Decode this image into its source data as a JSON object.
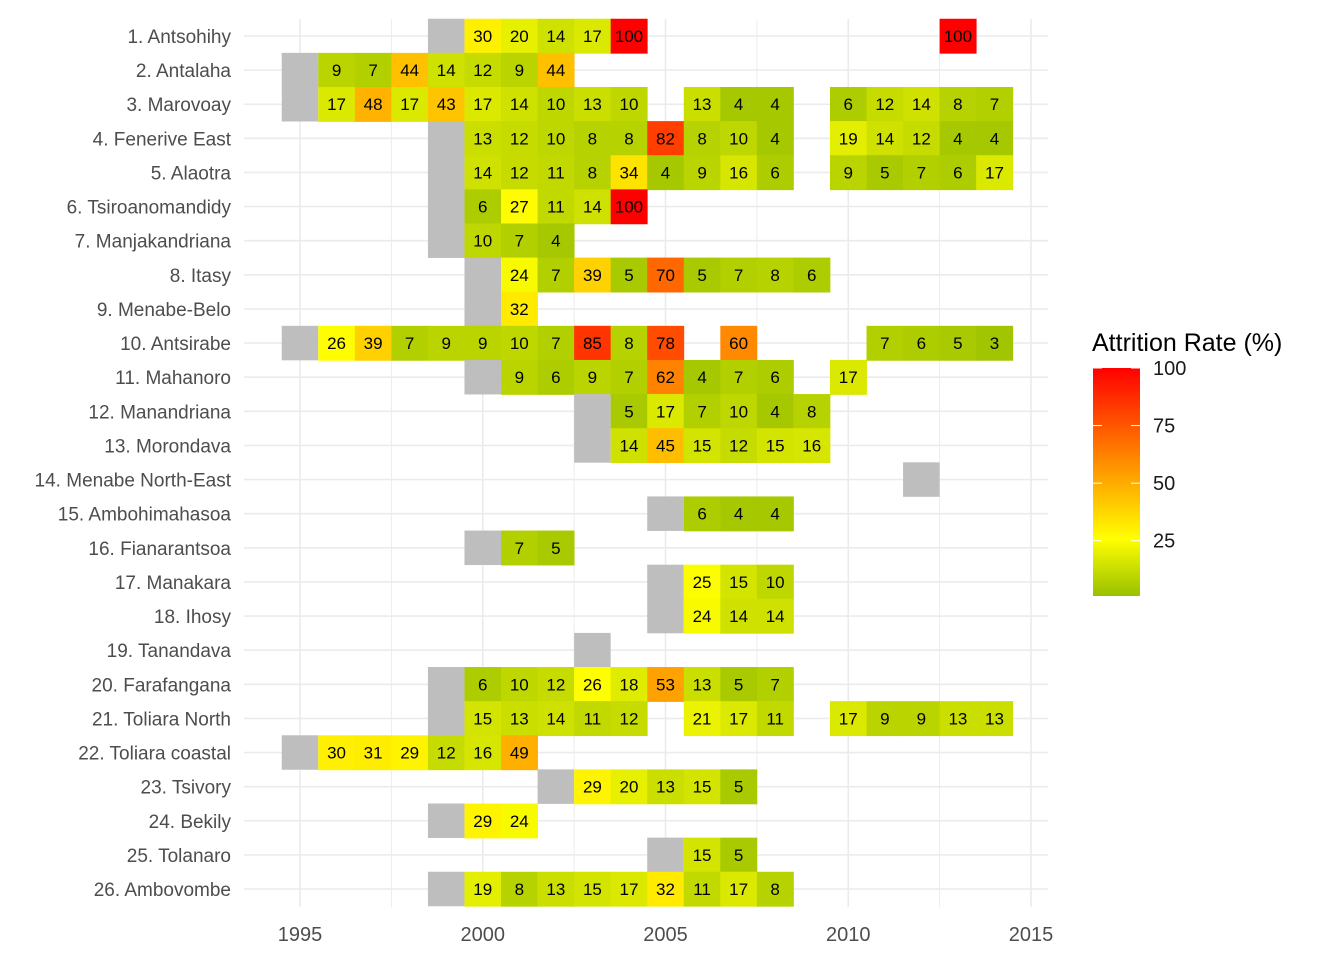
{
  "chart_data": {
    "type": "heatmap",
    "title": "",
    "xlabel": "",
    "ylabel": "",
    "legend": {
      "title": "Attrition Rate (%)",
      "ticks": [
        25,
        50,
        75,
        100
      ],
      "placement": "right",
      "range": [
        1,
        100
      ]
    },
    "x_ticks": [
      1995,
      2000,
      2005,
      2010,
      2015
    ],
    "xlim": [
      1993.7,
      2015.6
    ],
    "grid": true,
    "colors": {
      "low": "#99c000",
      "mid": "#ffff00",
      "high": "#ff0000",
      "missing": "#bebebe",
      "grid": "#ebebeb"
    },
    "rows": [
      {
        "label": "1. Antsohihy",
        "missing": [
          1999
        ],
        "cells": [
          [
            2000,
            30
          ],
          [
            2001,
            20
          ],
          [
            2002,
            14
          ],
          [
            2003,
            17
          ],
          [
            2004,
            100
          ],
          [
            2013,
            100
          ]
        ]
      },
      {
        "label": "2. Antalaha",
        "missing": [
          1995
        ],
        "cells": [
          [
            1996,
            9
          ],
          [
            1997,
            7
          ],
          [
            1998,
            44
          ],
          [
            1999,
            14
          ],
          [
            2000,
            12
          ],
          [
            2001,
            9
          ],
          [
            2002,
            44
          ]
        ]
      },
      {
        "label": "3. Marovoay",
        "missing": [
          1995
        ],
        "cells": [
          [
            1996,
            17
          ],
          [
            1997,
            48
          ],
          [
            1998,
            17
          ],
          [
            1999,
            43
          ],
          [
            2000,
            17
          ],
          [
            2001,
            14
          ],
          [
            2002,
            10
          ],
          [
            2003,
            13
          ],
          [
            2004,
            10
          ],
          [
            2006,
            13
          ],
          [
            2007,
            4
          ],
          [
            2008,
            4
          ],
          [
            2010,
            6
          ],
          [
            2011,
            12
          ],
          [
            2012,
            14
          ],
          [
            2013,
            8
          ],
          [
            2014,
            7
          ]
        ]
      },
      {
        "label": "4. Fenerive East",
        "missing": [
          1999
        ],
        "cells": [
          [
            2000,
            13
          ],
          [
            2001,
            12
          ],
          [
            2002,
            10
          ],
          [
            2003,
            8
          ],
          [
            2004,
            8
          ],
          [
            2005,
            82
          ],
          [
            2006,
            8
          ],
          [
            2007,
            10
          ],
          [
            2008,
            4
          ],
          [
            2010,
            19
          ],
          [
            2011,
            14
          ],
          [
            2012,
            12
          ],
          [
            2013,
            4
          ],
          [
            2014,
            4
          ]
        ]
      },
      {
        "label": "5. Alaotra",
        "missing": [
          1999
        ],
        "cells": [
          [
            2000,
            14
          ],
          [
            2001,
            12
          ],
          [
            2002,
            11
          ],
          [
            2003,
            8
          ],
          [
            2004,
            34
          ],
          [
            2005,
            4
          ],
          [
            2006,
            9
          ],
          [
            2007,
            16
          ],
          [
            2008,
            6
          ],
          [
            2010,
            9
          ],
          [
            2011,
            5
          ],
          [
            2012,
            7
          ],
          [
            2013,
            6
          ],
          [
            2014,
            17
          ]
        ]
      },
      {
        "label": "6. Tsiroanomandidy",
        "missing": [
          1999
        ],
        "cells": [
          [
            2000,
            6
          ],
          [
            2001,
            27
          ],
          [
            2002,
            11
          ],
          [
            2003,
            14
          ],
          [
            2004,
            100
          ]
        ]
      },
      {
        "label": "7. Manjakandriana",
        "missing": [
          1999
        ],
        "cells": [
          [
            2000,
            10
          ],
          [
            2001,
            7
          ],
          [
            2002,
            4
          ]
        ]
      },
      {
        "label": "8. Itasy",
        "missing": [
          2000
        ],
        "cells": [
          [
            2001,
            24
          ],
          [
            2002,
            7
          ],
          [
            2003,
            39
          ],
          [
            2004,
            5
          ],
          [
            2005,
            70
          ],
          [
            2006,
            5
          ],
          [
            2007,
            7
          ],
          [
            2008,
            8
          ],
          [
            2009,
            6
          ]
        ]
      },
      {
        "label": "9. Menabe-Belo",
        "missing": [
          2000
        ],
        "cells": [
          [
            2001,
            32
          ]
        ]
      },
      {
        "label": "10. Antsirabe",
        "missing": [
          1995
        ],
        "cells": [
          [
            1996,
            26
          ],
          [
            1997,
            39
          ],
          [
            1998,
            7
          ],
          [
            1999,
            9
          ],
          [
            2000,
            9
          ],
          [
            2001,
            10
          ],
          [
            2002,
            7
          ],
          [
            2003,
            85
          ],
          [
            2004,
            8
          ],
          [
            2005,
            78
          ],
          [
            2007,
            60
          ],
          [
            2011,
            7
          ],
          [
            2012,
            6
          ],
          [
            2013,
            5
          ],
          [
            2014,
            3
          ]
        ]
      },
      {
        "label": "11. Mahanoro",
        "missing": [
          2000
        ],
        "cells": [
          [
            2001,
            9
          ],
          [
            2002,
            6
          ],
          [
            2003,
            9
          ],
          [
            2004,
            7
          ],
          [
            2005,
            62
          ],
          [
            2006,
            4
          ],
          [
            2007,
            7
          ],
          [
            2008,
            6
          ],
          [
            2010,
            17
          ]
        ]
      },
      {
        "label": "12. Manandriana",
        "missing": [
          2003
        ],
        "cells": [
          [
            2004,
            5
          ],
          [
            2005,
            17
          ],
          [
            2006,
            7
          ],
          [
            2007,
            10
          ],
          [
            2008,
            4
          ],
          [
            2009,
            8
          ]
        ]
      },
      {
        "label": "13. Morondava",
        "missing": [
          2003
        ],
        "cells": [
          [
            2004,
            14
          ],
          [
            2005,
            45
          ],
          [
            2006,
            15
          ],
          [
            2007,
            12
          ],
          [
            2008,
            15
          ],
          [
            2009,
            16
          ]
        ]
      },
      {
        "label": "14. Menabe North-East",
        "missing": [
          2012
        ],
        "cells": []
      },
      {
        "label": "15. Ambohimahasoa",
        "missing": [
          2005
        ],
        "cells": [
          [
            2006,
            6
          ],
          [
            2007,
            4
          ],
          [
            2008,
            4
          ]
        ]
      },
      {
        "label": "16. Fianarantsoa",
        "missing": [
          2000
        ],
        "cells": [
          [
            2001,
            7
          ],
          [
            2002,
            5
          ]
        ]
      },
      {
        "label": "17. Manakara",
        "missing": [
          2005
        ],
        "cells": [
          [
            2006,
            25
          ],
          [
            2007,
            15
          ],
          [
            2008,
            10
          ]
        ]
      },
      {
        "label": "18. Ihosy",
        "missing": [
          2005
        ],
        "cells": [
          [
            2006,
            24
          ],
          [
            2007,
            14
          ],
          [
            2008,
            14
          ]
        ]
      },
      {
        "label": "19. Tanandava",
        "missing": [
          2003
        ],
        "cells": []
      },
      {
        "label": "20. Farafangana",
        "missing": [
          1999
        ],
        "cells": [
          [
            2000,
            6
          ],
          [
            2001,
            10
          ],
          [
            2002,
            12
          ],
          [
            2003,
            26
          ],
          [
            2004,
            18
          ],
          [
            2005,
            53
          ],
          [
            2006,
            13
          ],
          [
            2007,
            5
          ],
          [
            2008,
            7
          ]
        ]
      },
      {
        "label": "21. Toliara North",
        "missing": [
          1999
        ],
        "cells": [
          [
            2000,
            15
          ],
          [
            2001,
            13
          ],
          [
            2002,
            14
          ],
          [
            2003,
            11
          ],
          [
            2004,
            12
          ],
          [
            2006,
            21
          ],
          [
            2007,
            17
          ],
          [
            2008,
            11
          ],
          [
            2010,
            17
          ],
          [
            2011,
            9
          ],
          [
            2012,
            9
          ],
          [
            2013,
            13
          ],
          [
            2014,
            13
          ]
        ]
      },
      {
        "label": "22. Toliara coastal",
        "missing": [
          1995
        ],
        "cells": [
          [
            1996,
            30
          ],
          [
            1997,
            31
          ],
          [
            1998,
            29
          ],
          [
            1999,
            12
          ],
          [
            2000,
            16
          ],
          [
            2001,
            49
          ]
        ]
      },
      {
        "label": "23. Tsivory",
        "missing": [
          2002
        ],
        "cells": [
          [
            2003,
            29
          ],
          [
            2004,
            20
          ],
          [
            2005,
            13
          ],
          [
            2006,
            15
          ],
          [
            2007,
            5
          ]
        ]
      },
      {
        "label": "24. Bekily",
        "missing": [
          1999
        ],
        "cells": [
          [
            2000,
            29
          ],
          [
            2001,
            24
          ]
        ]
      },
      {
        "label": "25. Tolanaro",
        "missing": [
          2005
        ],
        "cells": [
          [
            2006,
            15
          ],
          [
            2007,
            5
          ]
        ]
      },
      {
        "label": "26. Ambovombe",
        "missing": [
          1999
        ],
        "cells": [
          [
            2000,
            19
          ],
          [
            2001,
            8
          ],
          [
            2002,
            13
          ],
          [
            2003,
            15
          ],
          [
            2004,
            17
          ],
          [
            2005,
            32
          ],
          [
            2006,
            11
          ],
          [
            2007,
            17
          ],
          [
            2008,
            8
          ]
        ]
      }
    ]
  }
}
